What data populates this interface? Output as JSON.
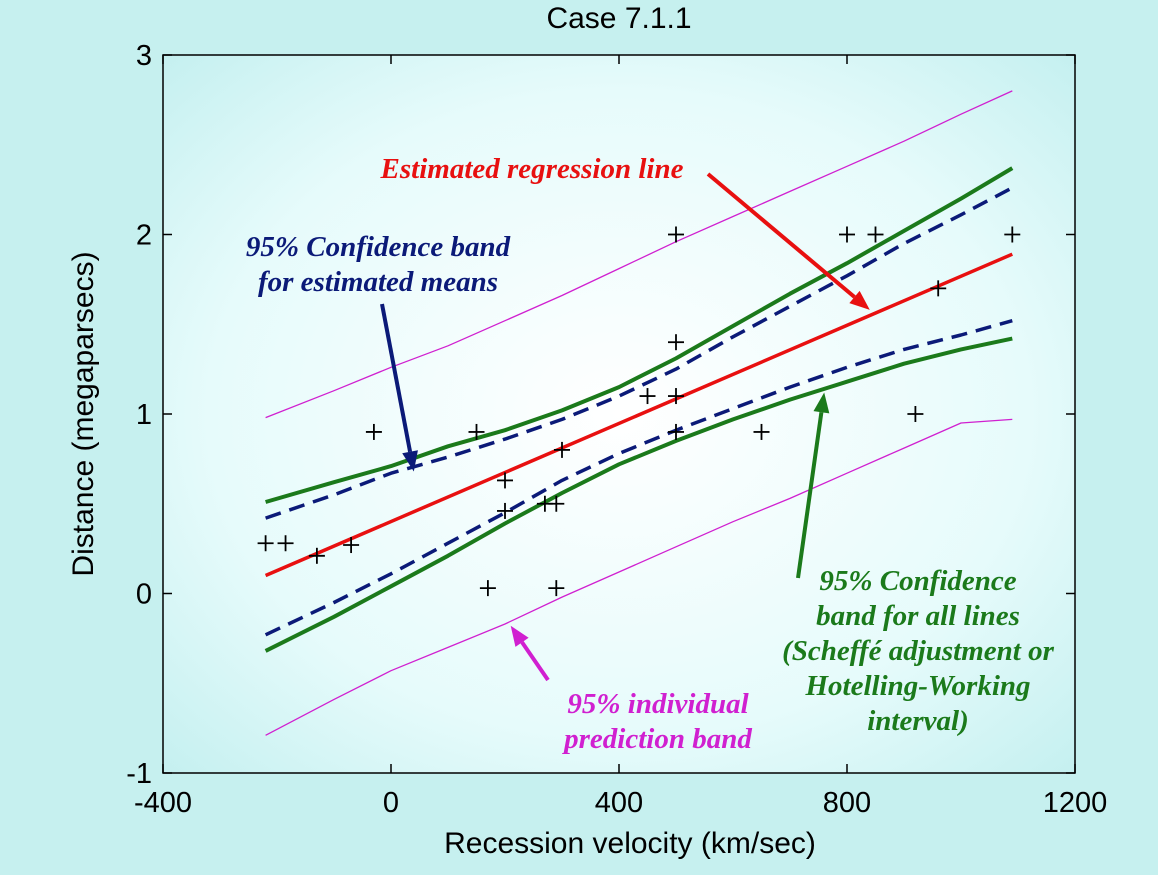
{
  "chart_data": {
    "type": "scatter",
    "title": "Case 7.1.1",
    "xlabel": "Recession velocity (km/sec)",
    "ylabel": "Distance (megaparsecs)",
    "xlim": [
      -400,
      1200
    ],
    "ylim": [
      -1,
      3
    ],
    "xticks": [
      -400,
      0,
      400,
      800,
      1200
    ],
    "yticks": [
      -1,
      0,
      1,
      2,
      3
    ],
    "grid": false,
    "points": {
      "x": [
        -220,
        -185,
        -130,
        -70,
        -30,
        150,
        170,
        200,
        200,
        270,
        290,
        290,
        300,
        450,
        500,
        500,
        500,
        500,
        650,
        800,
        850,
        920,
        960,
        1090
      ],
      "y": [
        0.28,
        0.28,
        0.21,
        0.27,
        0.9,
        0.9,
        0.03,
        0.63,
        0.46,
        0.5,
        0.5,
        0.03,
        0.8,
        1.1,
        2.0,
        1.4,
        1.1,
        0.9,
        0.9,
        2.0,
        2.0,
        1.0,
        1.7,
        2.0
      ]
    },
    "series": [
      {
        "name": "regression",
        "color": "#e81010",
        "x": [
          -220,
          1090
        ],
        "y": [
          0.1,
          1.89
        ]
      },
      {
        "name": "ci_upper",
        "color": "#0b1a78",
        "x": [
          -220,
          -100,
          0,
          100,
          200,
          300,
          400,
          500,
          600,
          700,
          800,
          900,
          1000,
          1090
        ],
        "y": [
          0.42,
          0.55,
          0.67,
          0.76,
          0.86,
          0.97,
          1.1,
          1.25,
          1.43,
          1.6,
          1.77,
          1.95,
          2.11,
          2.26
        ]
      },
      {
        "name": "ci_lower",
        "color": "#0b1a78",
        "x": [
          -220,
          -100,
          0,
          100,
          200,
          300,
          400,
          500,
          600,
          700,
          800,
          900,
          1000,
          1090
        ],
        "y": [
          -0.23,
          -0.05,
          0.11,
          0.28,
          0.45,
          0.63,
          0.78,
          0.91,
          1.03,
          1.15,
          1.26,
          1.36,
          1.44,
          1.52
        ]
      },
      {
        "name": "scheffe_upper",
        "color": "#1b7a1b",
        "x": [
          -220,
          -100,
          0,
          100,
          200,
          300,
          400,
          500,
          600,
          700,
          800,
          900,
          1000,
          1090
        ],
        "y": [
          0.51,
          0.62,
          0.71,
          0.82,
          0.91,
          1.02,
          1.15,
          1.31,
          1.49,
          1.67,
          1.84,
          2.02,
          2.2,
          2.37
        ]
      },
      {
        "name": "scheffe_lower",
        "color": "#1b7a1b",
        "x": [
          -220,
          -100,
          0,
          100,
          200,
          300,
          400,
          500,
          600,
          700,
          800,
          900,
          1000,
          1090
        ],
        "y": [
          -0.32,
          -0.13,
          0.04,
          0.21,
          0.39,
          0.56,
          0.72,
          0.85,
          0.97,
          1.08,
          1.18,
          1.28,
          1.36,
          1.42
        ]
      },
      {
        "name": "pred_upper",
        "color": "#d020d0",
        "x": [
          -220,
          -100,
          0,
          100,
          200,
          300,
          400,
          500,
          600,
          700,
          800,
          900,
          1000,
          1090
        ],
        "y": [
          0.98,
          1.13,
          1.26,
          1.38,
          1.52,
          1.66,
          1.81,
          1.96,
          2.1,
          2.24,
          2.38,
          2.52,
          2.67,
          2.8
        ]
      },
      {
        "name": "pred_lower",
        "color": "#d020d0",
        "x": [
          -220,
          -100,
          0,
          100,
          200,
          300,
          400,
          500,
          600,
          700,
          800,
          900,
          1000,
          1090
        ],
        "y": [
          -0.79,
          -0.59,
          -0.43,
          -0.3,
          -0.17,
          -0.02,
          0.12,
          0.26,
          0.4,
          0.53,
          0.67,
          0.81,
          0.95,
          0.97
        ]
      }
    ],
    "annotations": [
      {
        "lines": [
          "Estimated regression line"
        ],
        "color": "#e81010",
        "arrow_to": [
          840,
          1.58
        ]
      },
      {
        "lines": [
          "95% Confidence band",
          "for estimated means"
        ],
        "color": "#0b1a78",
        "arrow_to": [
          40,
          0.68
        ]
      },
      {
        "lines": [
          "95% Confidence",
          "band for all lines",
          "(Scheffé adjustment or",
          "Hotelling-Working",
          "interval)"
        ],
        "color": "#1b7a1b",
        "arrow_to": [
          760,
          1.12
        ]
      },
      {
        "lines": [
          "95% individual",
          "prediction band"
        ],
        "color": "#d020d0",
        "arrow_to": [
          210,
          -0.18
        ]
      }
    ]
  }
}
